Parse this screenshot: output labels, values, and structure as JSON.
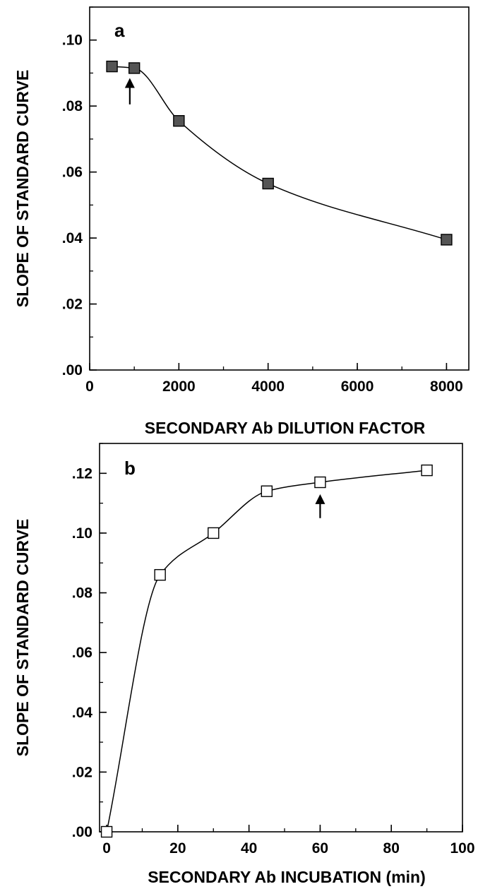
{
  "chart_data": [
    {
      "type": "line",
      "panel_label": "a",
      "xlabel": "SECONDARY Ab DILUTION FACTOR",
      "ylabel": "SLOPE OF STANDARD CURVE",
      "xlim": [
        0,
        8500
      ],
      "ylim": [
        0,
        0.11
      ],
      "xticks": [
        0,
        2000,
        4000,
        6000,
        8000
      ],
      "xtick_labels": [
        "0",
        "2000",
        "4000",
        "6000",
        "8000"
      ],
      "yticks": [
        0,
        0.02,
        0.04,
        0.06,
        0.08,
        0.1
      ],
      "ytick_labels": [
        ".00",
        ".02",
        ".04",
        ".06",
        ".08",
        ".10"
      ],
      "series": [
        {
          "marker": "filled-square",
          "marker_color": "#555555",
          "x": [
            500,
            1000,
            2000,
            4000,
            8000
          ],
          "y": [
            0.092,
            0.0915,
            0.0755,
            0.0565,
            0.0395
          ]
        }
      ],
      "annotations": [
        {
          "type": "arrow",
          "direction": "up",
          "x": 900,
          "y_tip": 0.0885,
          "y_tail": 0.0805
        }
      ]
    },
    {
      "type": "line",
      "panel_label": "b",
      "xlabel": "SECONDARY Ab INCUBATION (min)",
      "ylabel": "SLOPE OF STANDARD CURVE",
      "xlim": [
        -2,
        100
      ],
      "ylim": [
        0,
        0.13
      ],
      "xticks": [
        0,
        20,
        40,
        60,
        80,
        100
      ],
      "xtick_labels": [
        "0",
        "20",
        "40",
        "60",
        "80",
        "100"
      ],
      "yticks": [
        0,
        0.02,
        0.04,
        0.06,
        0.08,
        0.1,
        0.12
      ],
      "ytick_labels": [
        ".00",
        ".02",
        ".04",
        ".06",
        ".08",
        ".10",
        ".12"
      ],
      "series": [
        {
          "marker": "open-square",
          "marker_color": "#ffffff",
          "x": [
            0,
            15,
            30,
            45,
            60,
            90
          ],
          "y": [
            0.0,
            0.086,
            0.1,
            0.114,
            0.117,
            0.121
          ]
        }
      ],
      "annotations": [
        {
          "type": "arrow",
          "direction": "up",
          "x": 60,
          "y_tip": 0.113,
          "y_tail": 0.105
        }
      ]
    }
  ]
}
